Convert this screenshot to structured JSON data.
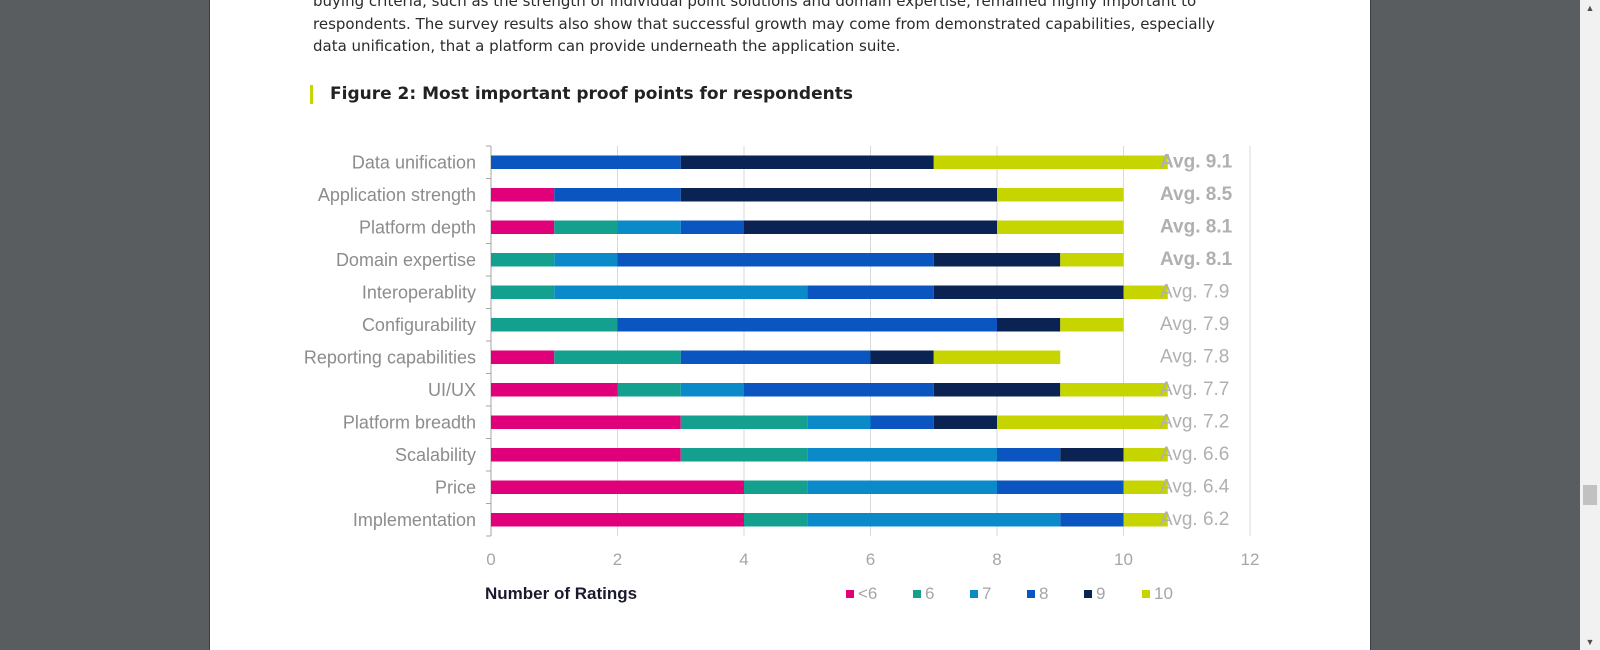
{
  "document": {
    "intro_lines": [
      "buying criteria, such as the strength of individual point solutions and domain expertise, remained highly important to",
      "respondents. The survey results also show that successful growth may come from demonstrated capabilities, especially",
      "data unification, that a platform can provide underneath the application suite."
    ],
    "figure_title": "Figure 2: Most important proof points for respondents"
  },
  "scrollbar": {
    "up_icon": "triangle-up-icon",
    "down_icon": "triangle-down-icon",
    "scroll_position": 0.75
  },
  "chart_data": {
    "type": "bar",
    "orientation": "horizontal",
    "stacked": true,
    "xlabel": "Number of Ratings",
    "xlim": [
      0,
      12
    ],
    "xticks": [
      0,
      2,
      4,
      6,
      8,
      10,
      12
    ],
    "grid": true,
    "legend_position": "bottom",
    "categories": [
      "Data unification",
      "Application strength",
      "Platform depth",
      "Domain expertise",
      "Interoperablity",
      "Configurability",
      "Reporting capabilities",
      "UI/UX",
      "Platform breadth",
      "Scalability",
      "Price",
      "Implementation"
    ],
    "averages": [
      {
        "label": "Avg. 9.1",
        "bold": true
      },
      {
        "label": "Avg. 8.5",
        "bold": true
      },
      {
        "label": "Avg. 8.1",
        "bold": true
      },
      {
        "label": "Avg. 8.1",
        "bold": true
      },
      {
        "label": "Avg. 7.9",
        "bold": false
      },
      {
        "label": "Avg. 7.9",
        "bold": false
      },
      {
        "label": "Avg. 7.8",
        "bold": false
      },
      {
        "label": "Avg. 7.7",
        "bold": false
      },
      {
        "label": "Avg. 7.2",
        "bold": false
      },
      {
        "label": "Avg. 6.6",
        "bold": false
      },
      {
        "label": "Avg. 6.4",
        "bold": false
      },
      {
        "label": "Avg. 6.2",
        "bold": false
      }
    ],
    "series": [
      {
        "name": "<6",
        "color": "#e0007a",
        "values": [
          0,
          1,
          1,
          0,
          0,
          0,
          1,
          2,
          3,
          3,
          4,
          4
        ]
      },
      {
        "name": "6",
        "color": "#14a08f",
        "values": [
          0,
          0,
          1,
          1,
          1,
          2,
          2,
          1,
          2,
          2,
          1,
          1
        ]
      },
      {
        "name": "7",
        "color": "#0a8ac8",
        "values": [
          0,
          0,
          1,
          1,
          4,
          0,
          0,
          1,
          1,
          3,
          3,
          4
        ]
      },
      {
        "name": "8",
        "color": "#0b55c0",
        "values": [
          3,
          2,
          1,
          5,
          2,
          6,
          3,
          3,
          1,
          1,
          2,
          1
        ]
      },
      {
        "name": "9",
        "color": "#0b2352",
        "values": [
          4,
          5,
          4,
          2,
          3,
          1,
          1,
          2,
          1,
          1,
          0,
          0
        ]
      },
      {
        "name": "10",
        "color": "#c6d400",
        "values": [
          3.7,
          2,
          2,
          1,
          0.7,
          1,
          2,
          1.7,
          2.7,
          0.7,
          0.7,
          0.7
        ]
      }
    ]
  }
}
